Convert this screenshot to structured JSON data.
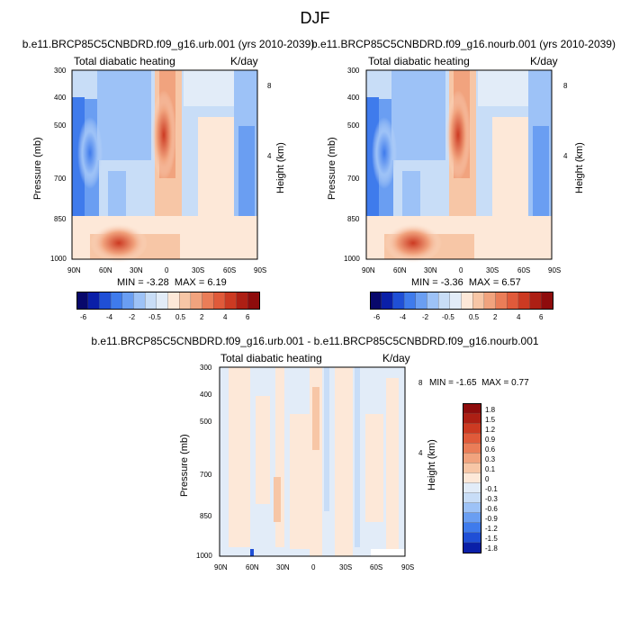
{
  "figure": {
    "title": "DJF",
    "colors": {
      "neg": [
        "#08086b",
        "#0a1fa8",
        "#1f4fd6",
        "#3f7bec",
        "#6a9ef2",
        "#9dc2f7",
        "#c8ddf7",
        "#e2ecf8"
      ],
      "pos": [
        "#fde8d8",
        "#f7c6a6",
        "#f1a37e",
        "#ea7d58",
        "#e05a3a",
        "#cc3a22",
        "#ad1f14",
        "#8e0c0c",
        "#6d0000"
      ]
    }
  },
  "chart_data": [
    {
      "type": "heatmap",
      "title": "b.e11.BRCP85C5CNBDRD.f09_g16.urb.001 (yrs 2010-2039)",
      "left_label": "Total diabatic heating",
      "right_label": "K/day",
      "ylabel": "Pressure (mb)",
      "y2label": "Height (km)",
      "x_ticks": [
        "90N",
        "60N",
        "30N",
        "0",
        "30S",
        "60S",
        "90S"
      ],
      "y_ticks": [
        "300",
        "400",
        "500",
        "700",
        "850",
        "1000"
      ],
      "y2_ticks": [
        "8",
        "4"
      ],
      "min_label": "MIN =",
      "min_value": "-3.28",
      "max_label": "MAX =",
      "max_value": "6.19",
      "min": -3.28,
      "max": 6.19,
      "colorbar_labels": [
        "-6",
        "-4",
        "-2",
        "-0.5",
        "0.5",
        "2",
        "4",
        "6"
      ]
    },
    {
      "type": "heatmap",
      "title": "b.e11.BRCP85C5CNBDRD.f09_g16.nourb.001 (yrs 2010-2039)",
      "left_label": "Total diabatic heating",
      "right_label": "K/day",
      "ylabel": "Pressure (mb)",
      "y2label": "Height (km)",
      "x_ticks": [
        "90N",
        "60N",
        "30N",
        "0",
        "30S",
        "60S",
        "90S"
      ],
      "y_ticks": [
        "300",
        "400",
        "500",
        "700",
        "850",
        "1000"
      ],
      "y2_ticks": [
        "8",
        "4"
      ],
      "min_label": "MIN =",
      "min_value": "-3.36",
      "max_label": "MAX =",
      "max_value": "6.57",
      "min": -3.36,
      "max": 6.57,
      "colorbar_labels": [
        "-6",
        "-4",
        "-2",
        "-0.5",
        "0.5",
        "2",
        "4",
        "6"
      ]
    },
    {
      "type": "heatmap",
      "title": "b.e11.BRCP85C5CNBDRD.f09_g16.urb.001 - b.e11.BRCP85C5CNBDRD.f09_g16.nourb.001",
      "left_label": "Total diabatic heating",
      "right_label": "K/day",
      "ylabel": "Pressure (mb)",
      "y2label": "Height (km)",
      "x_ticks": [
        "90N",
        "60N",
        "30N",
        "0",
        "30S",
        "60S",
        "90S"
      ],
      "y_ticks": [
        "300",
        "400",
        "500",
        "700",
        "850",
        "1000"
      ],
      "y2_ticks": [
        "8",
        "4"
      ],
      "min_label": "MIN =",
      "min_value": "-1.65",
      "max_label": "MAX =",
      "max_value": "0.77",
      "min": -1.65,
      "max": 0.77,
      "colorbar_labels": [
        "1.8",
        "1.5",
        "1.2",
        "0.9",
        "0.6",
        "0.3",
        "0.1",
        "0",
        "-0.1",
        "-0.3",
        "-0.6",
        "-0.9",
        "-1.2",
        "-1.5",
        "-1.8"
      ]
    }
  ]
}
